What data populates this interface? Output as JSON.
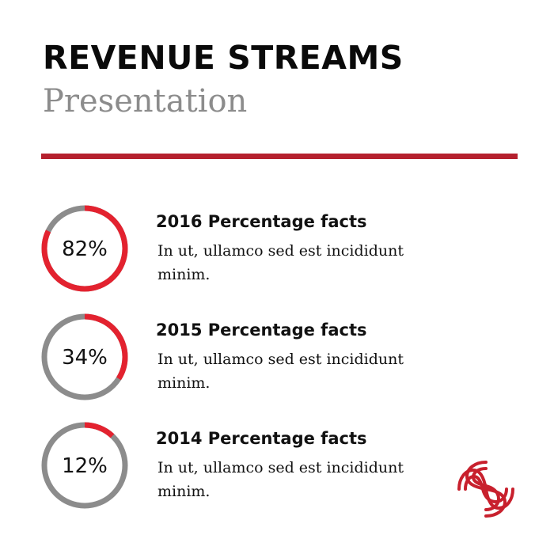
{
  "header": {
    "title": "REVENUE STREAMS",
    "subtitle": "Presentation"
  },
  "colors": {
    "accent": "#e3222f",
    "divider": "#b5202e",
    "ring_track": "#8c8c8c"
  },
  "stats": [
    {
      "percent_label": "82%",
      "value": 0.82,
      "heading": "2016 Percentage facts",
      "description": "In ut, ullamco sed est incididunt minim."
    },
    {
      "percent_label": "34%",
      "value": 0.34,
      "heading": "2015 Percentage facts",
      "description": "In ut, ullamco sed est incididunt minim."
    },
    {
      "percent_label": "12%",
      "value": 0.12,
      "heading": "2014 Percentage facts",
      "description": "In ut, ullamco sed est incididunt minim."
    }
  ],
  "logo": {
    "icon": "interlocking-s-logo-icon"
  }
}
